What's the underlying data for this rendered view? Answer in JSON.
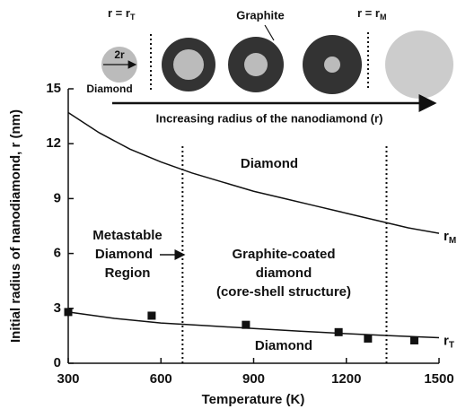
{
  "diagram": {
    "r_t_label": "r = r",
    "r_t_sub": "T",
    "graphite": "Graphite",
    "r_m_label": "r = r",
    "r_m_sub": "M",
    "two_r": "2r",
    "diamond": "Diamond",
    "arrow_label": "Increasing radius of the nanodiamond (r)"
  },
  "chart_data": {
    "type": "line",
    "xlabel": "Temperature (K)",
    "ylabel": "Initial radius of nanodiamond, r (nm)",
    "xlim": [
      300,
      1500
    ],
    "xticks": [
      300,
      600,
      900,
      1200,
      1500
    ],
    "ylim": [
      0,
      15
    ],
    "yticks": [
      0,
      3,
      6,
      9,
      12,
      15
    ],
    "color": "#111",
    "vlines": [
      670,
      1330
    ],
    "series": [
      {
        "type": "line",
        "label": "r",
        "label_sub": "M",
        "x": [
          300,
          400,
          500,
          600,
          700,
          800,
          900,
          1000,
          1100,
          1200,
          1300,
          1400,
          1500
        ],
        "values": [
          13.7,
          12.6,
          11.7,
          11.0,
          10.4,
          9.9,
          9.4,
          9.0,
          8.6,
          8.2,
          7.8,
          7.4,
          7.1
        ]
      },
      {
        "type": "line",
        "label": "r",
        "label_sub": "T",
        "x": [
          300,
          450,
          600,
          750,
          900,
          1050,
          1200,
          1350,
          1500
        ],
        "values": [
          2.8,
          2.45,
          2.2,
          2.05,
          1.9,
          1.75,
          1.62,
          1.5,
          1.4
        ]
      },
      {
        "type": "scatter",
        "x": [
          300,
          570,
          875,
          1175,
          1270,
          1420
        ],
        "values": [
          2.8,
          2.6,
          2.1,
          1.7,
          1.35,
          1.25
        ]
      }
    ],
    "annotations": [
      "Diamond",
      "Metastable",
      "Diamond",
      "Region",
      "Graphite-coated",
      "diamond",
      "(core-shell structure)",
      "Diamond"
    ]
  }
}
